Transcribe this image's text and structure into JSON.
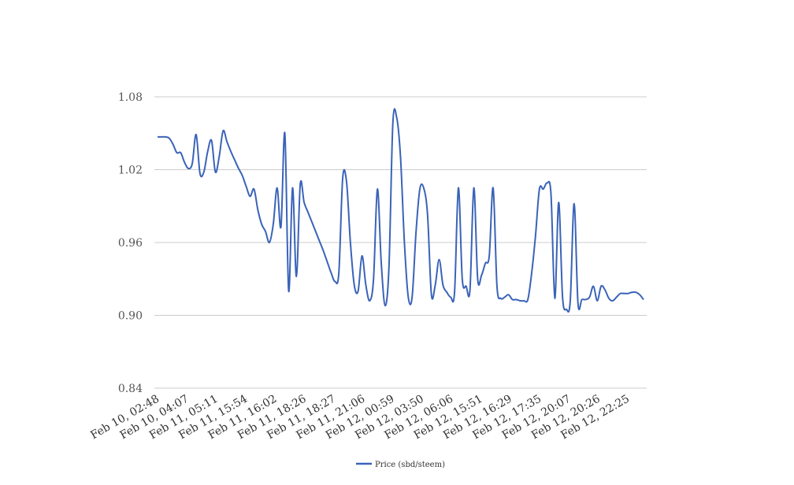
{
  "chart_data": {
    "type": "line",
    "title": "",
    "xlabel": "",
    "ylabel": "",
    "ylim": [
      0.84,
      1.08
    ],
    "yticks": [
      "0.84",
      "0.90",
      "0.96",
      "1.02",
      "1.08"
    ],
    "yticks_values": [
      0.84,
      0.9,
      0.96,
      1.02,
      1.08
    ],
    "xticks": [
      "Feb 10, 02:48",
      "Feb 10, 04:07",
      "Feb 11, 05:11",
      "Feb 11, 15:54",
      "Feb 11, 16:02",
      "Feb 11, 18:26",
      "Feb 11, 18:27",
      "Feb 11, 21:06",
      "Feb 12, 00:59",
      "Feb 12, 03:50",
      "Feb 12, 06:06",
      "Feb 12, 15:51",
      "Feb 12, 16:29",
      "Feb 12, 17:35",
      "Feb 12, 20:07",
      "Feb 12, 20:26",
      "Feb 12, 22:25"
    ],
    "grid": true,
    "legend_position": "bottom",
    "series": [
      {
        "name": "Price (sbd/steem)",
        "color": "#3a63b8",
        "values": [
          1.047,
          1.047,
          1.047,
          1.046,
          1.041,
          1.034,
          1.034,
          1.026,
          1.021,
          1.025,
          1.049,
          1.017,
          1.018,
          1.035,
          1.044,
          1.018,
          1.031,
          1.052,
          1.043,
          1.035,
          1.028,
          1.021,
          1.015,
          1.006,
          0.998,
          1.004,
          0.987,
          0.975,
          0.969,
          0.96,
          0.975,
          1.005,
          0.973,
          1.05,
          0.92,
          1.005,
          0.932,
          1.008,
          0.993,
          0.985,
          0.977,
          0.969,
          0.961,
          0.953,
          0.944,
          0.935,
          0.928,
          0.935,
          1.013,
          1.01,
          0.96,
          0.925,
          0.92,
          0.949,
          0.925,
          0.912,
          0.93,
          1.004,
          0.943,
          0.908,
          0.94,
          1.058,
          1.063,
          1.03,
          0.96,
          0.915,
          0.915,
          0.968,
          1.004,
          1.005,
          0.983,
          0.917,
          0.925,
          0.946,
          0.925,
          0.919,
          0.915,
          0.919,
          1.005,
          0.93,
          0.924,
          0.921,
          1.005,
          0.93,
          0.933,
          0.943,
          0.949,
          1.005,
          0.924,
          0.914,
          0.915,
          0.917,
          0.913,
          0.913,
          0.912,
          0.912,
          0.913,
          0.935,
          0.966,
          1.004,
          1.004,
          1.009,
          1.0,
          0.914,
          0.993,
          0.915,
          0.905,
          0.912,
          0.992,
          0.91,
          0.913,
          0.913,
          0.915,
          0.924,
          0.912,
          0.924,
          0.921,
          0.914,
          0.912,
          0.915,
          0.918,
          0.918,
          0.918,
          0.919,
          0.919,
          0.917,
          0.913
        ]
      }
    ]
  }
}
